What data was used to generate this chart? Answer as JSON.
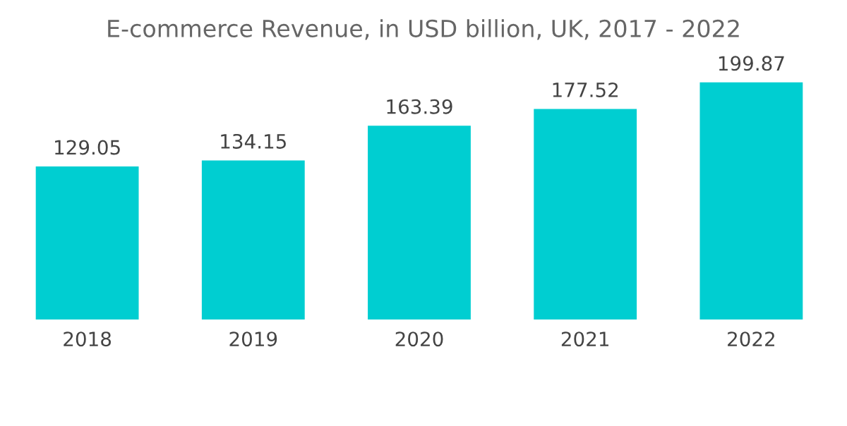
{
  "chart_data": {
    "type": "bar",
    "title": "E-commerce Revenue, in USD billion, UK, 2017 - 2022",
    "categories": [
      "2018",
      "2019",
      "2020",
      "2021",
      "2022"
    ],
    "values": [
      129.05,
      134.15,
      163.39,
      177.52,
      199.87
    ],
    "color": "#00ced1",
    "data_labels": true,
    "grid": false
  }
}
